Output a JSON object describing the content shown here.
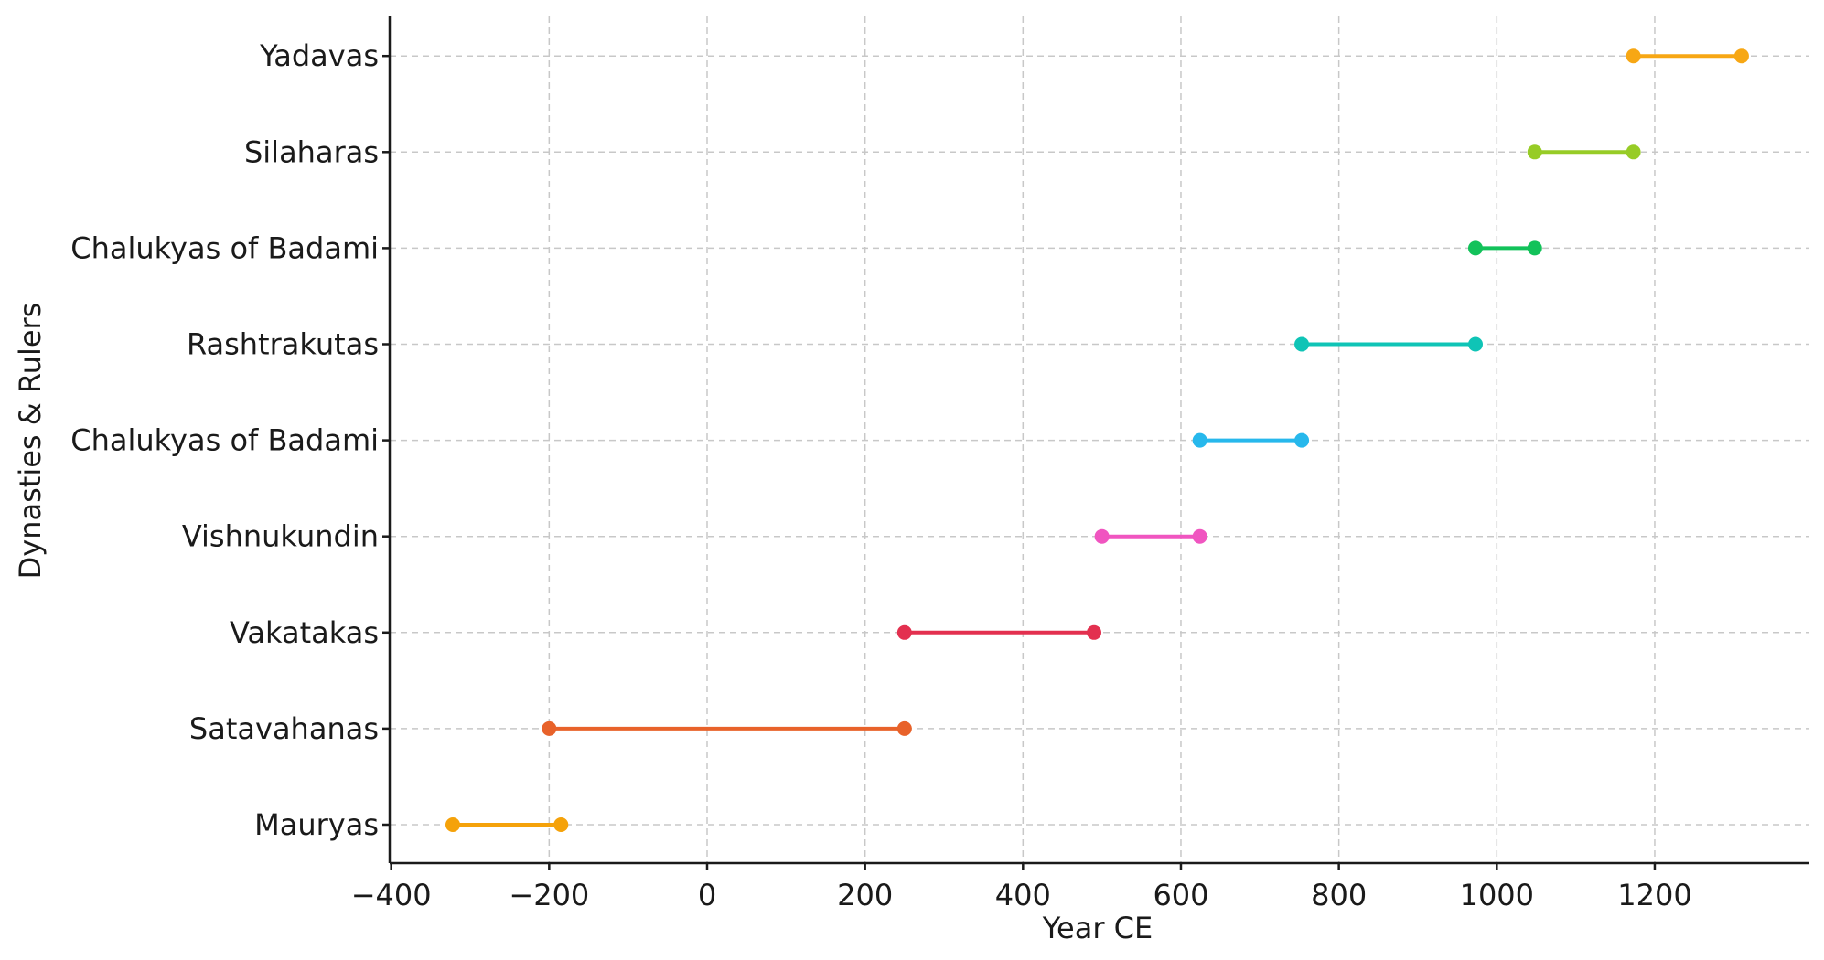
{
  "chart_data": {
    "type": "line",
    "title": "",
    "xlabel": "Year CE",
    "ylabel": "Dynasties & Rulers",
    "xlim": [
      -400,
      1390
    ],
    "xticks": [
      -400,
      -200,
      0,
      200,
      400,
      600,
      800,
      1000,
      1200
    ],
    "xtick_labels": [
      "−400",
      "−200",
      "0",
      "200",
      "400",
      "600",
      "800",
      "1000",
      "1200"
    ],
    "grid": true,
    "categories": [
      "Mauryas",
      "Satavahanas",
      "Vakatakas",
      "Vishnukundin",
      "Chalukyas of Badami",
      "Rashtrakutas",
      "Chalukyas of Badami",
      "Silaharas",
      "Yadavas"
    ],
    "series": [
      {
        "start": -322,
        "end": -185,
        "color": "#f5a20a"
      },
      {
        "start": -200,
        "end": 250,
        "color": "#e8622a"
      },
      {
        "start": 250,
        "end": 490,
        "color": "#e3304f"
      },
      {
        "start": 500,
        "end": 624,
        "color": "#f055c0"
      },
      {
        "start": 624,
        "end": 753,
        "color": "#27b8ec"
      },
      {
        "start": 753,
        "end": 973,
        "color": "#0fc4b6"
      },
      {
        "start": 973,
        "end": 1048,
        "color": "#12c25a"
      },
      {
        "start": 1048,
        "end": 1173,
        "color": "#97cc26"
      },
      {
        "start": 1173,
        "end": 1310,
        "color": "#f7a714"
      }
    ]
  }
}
